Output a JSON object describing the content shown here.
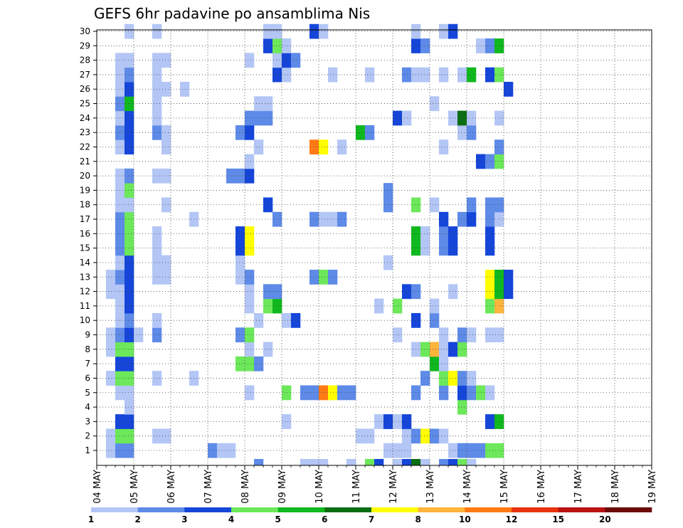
{
  "chart_data": {
    "type": "heatmap",
    "title": "GEFS 6hr padavine po ansamblima Nis",
    "x_ticks": [
      "04 MAY",
      "05 MAY",
      "06 MAY",
      "07 MAY",
      "08 MAY",
      "09 MAY",
      "10 MAY",
      "11 MAY",
      "12 MAY",
      "13 MAY",
      "14 MAY",
      "15 MAY",
      "16 MAY",
      "17 MAY",
      "18 MAY",
      "19 MAY"
    ],
    "y_ticks": [
      "1",
      "2",
      "3",
      "4",
      "5",
      "6",
      "7",
      "8",
      "9",
      "10",
      "11",
      "12",
      "13",
      "14",
      "15",
      "16",
      "17",
      "18",
      "19",
      "20",
      "21",
      "22",
      "23",
      "24",
      "25",
      "26",
      "27",
      "28",
      "29",
      "30"
    ],
    "x_steps_per_day": 4,
    "members": 30,
    "grid": true,
    "colorbar": {
      "labels": [
        "1",
        "2",
        "3",
        "4",
        "5",
        "6",
        "7",
        "8",
        "10",
        "12",
        "15",
        "20"
      ],
      "colors": [
        "#b3c6f5",
        "#5e8ae8",
        "#1546d9",
        "#6ce85a",
        "#0fb81e",
        "#0b6e13",
        "#ffff00",
        "#ffb43c",
        "#ff7a14",
        "#e8320c",
        "#b81212",
        "#6e0a0a"
      ]
    },
    "cells": [
      [
        1,
        1,
        1
      ],
      [
        1,
        2,
        2
      ],
      [
        1,
        3,
        2
      ],
      [
        1,
        12,
        2
      ],
      [
        1,
        13,
        1
      ],
      [
        1,
        14,
        1
      ],
      [
        1,
        31,
        1
      ],
      [
        1,
        32,
        1
      ],
      [
        1,
        33,
        1
      ],
      [
        1,
        38,
        1
      ],
      [
        1,
        39,
        2
      ],
      [
        1,
        40,
        2
      ],
      [
        1,
        41,
        2
      ],
      [
        1,
        42,
        4
      ],
      [
        1,
        43,
        4
      ],
      [
        2,
        1,
        1
      ],
      [
        2,
        2,
        4
      ],
      [
        2,
        3,
        4
      ],
      [
        2,
        6,
        1
      ],
      [
        2,
        7,
        1
      ],
      [
        2,
        28,
        1
      ],
      [
        2,
        29,
        1
      ],
      [
        2,
        33,
        1
      ],
      [
        2,
        34,
        2
      ],
      [
        2,
        35,
        7
      ],
      [
        2,
        36,
        2
      ],
      [
        2,
        37,
        1
      ],
      [
        3,
        2,
        3
      ],
      [
        3,
        3,
        3
      ],
      [
        3,
        20,
        1
      ],
      [
        3,
        30,
        1
      ],
      [
        3,
        31,
        3
      ],
      [
        3,
        32,
        1
      ],
      [
        3,
        33,
        3
      ],
      [
        3,
        42,
        3
      ],
      [
        3,
        43,
        5
      ],
      [
        4,
        3,
        1
      ],
      [
        4,
        39,
        4
      ],
      [
        5,
        2,
        1
      ],
      [
        5,
        3,
        1
      ],
      [
        5,
        16,
        1
      ],
      [
        5,
        20,
        4
      ],
      [
        5,
        22,
        2
      ],
      [
        5,
        23,
        2
      ],
      [
        5,
        24,
        9
      ],
      [
        5,
        25,
        7
      ],
      [
        5,
        26,
        2
      ],
      [
        5,
        27,
        2
      ],
      [
        5,
        34,
        2
      ],
      [
        5,
        37,
        2
      ],
      [
        5,
        39,
        3
      ],
      [
        5,
        40,
        2
      ],
      [
        5,
        41,
        4
      ],
      [
        5,
        42,
        1
      ],
      [
        6,
        1,
        1
      ],
      [
        6,
        2,
        4
      ],
      [
        6,
        3,
        4
      ],
      [
        6,
        6,
        1
      ],
      [
        6,
        10,
        1
      ],
      [
        6,
        35,
        2
      ],
      [
        6,
        37,
        4
      ],
      [
        6,
        38,
        7
      ],
      [
        6,
        39,
        2
      ],
      [
        6,
        40,
        1
      ],
      [
        7,
        2,
        3
      ],
      [
        7,
        3,
        3
      ],
      [
        7,
        15,
        4
      ],
      [
        7,
        16,
        4
      ],
      [
        7,
        17,
        2
      ],
      [
        7,
        36,
        5
      ],
      [
        7,
        37,
        1
      ],
      [
        8,
        1,
        1
      ],
      [
        8,
        2,
        4
      ],
      [
        8,
        3,
        4
      ],
      [
        8,
        16,
        1
      ],
      [
        8,
        18,
        1
      ],
      [
        8,
        34,
        1
      ],
      [
        8,
        35,
        4
      ],
      [
        8,
        36,
        8
      ],
      [
        8,
        37,
        1
      ],
      [
        8,
        38,
        3
      ],
      [
        8,
        39,
        4
      ],
      [
        9,
        1,
        1
      ],
      [
        9,
        2,
        2
      ],
      [
        9,
        3,
        3
      ],
      [
        9,
        4,
        1
      ],
      [
        9,
        6,
        2
      ],
      [
        9,
        15,
        2
      ],
      [
        9,
        16,
        4
      ],
      [
        9,
        32,
        1
      ],
      [
        9,
        37,
        1
      ],
      [
        9,
        39,
        2
      ],
      [
        9,
        40,
        1
      ],
      [
        9,
        42,
        1
      ],
      [
        9,
        43,
        1
      ],
      [
        10,
        2,
        1
      ],
      [
        10,
        3,
        2
      ],
      [
        10,
        6,
        1
      ],
      [
        10,
        17,
        1
      ],
      [
        10,
        20,
        1
      ],
      [
        10,
        21,
        3
      ],
      [
        10,
        34,
        3
      ],
      [
        10,
        36,
        2
      ],
      [
        11,
        2,
        1
      ],
      [
        11,
        3,
        3
      ],
      [
        11,
        16,
        1
      ],
      [
        11,
        18,
        4
      ],
      [
        11,
        19,
        5
      ],
      [
        11,
        30,
        1
      ],
      [
        11,
        32,
        4
      ],
      [
        11,
        36,
        1
      ],
      [
        11,
        42,
        4
      ],
      [
        11,
        43,
        8
      ],
      [
        12,
        1,
        1
      ],
      [
        12,
        2,
        1
      ],
      [
        12,
        3,
        3
      ],
      [
        12,
        16,
        1
      ],
      [
        12,
        18,
        2
      ],
      [
        12,
        19,
        2
      ],
      [
        12,
        33,
        3
      ],
      [
        12,
        34,
        2
      ],
      [
        12,
        38,
        1
      ],
      [
        12,
        42,
        7
      ],
      [
        12,
        43,
        5
      ],
      [
        12,
        44,
        3
      ],
      [
        13,
        1,
        1
      ],
      [
        13,
        2,
        2
      ],
      [
        13,
        3,
        3
      ],
      [
        13,
        6,
        1
      ],
      [
        13,
        7,
        1
      ],
      [
        13,
        15,
        1
      ],
      [
        13,
        16,
        2
      ],
      [
        13,
        23,
        2
      ],
      [
        13,
        24,
        4
      ],
      [
        13,
        25,
        2
      ],
      [
        13,
        42,
        7
      ],
      [
        13,
        43,
        5
      ],
      [
        13,
        44,
        3
      ],
      [
        14,
        2,
        1
      ],
      [
        14,
        3,
        3
      ],
      [
        14,
        6,
        1
      ],
      [
        14,
        7,
        1
      ],
      [
        14,
        15,
        1
      ],
      [
        14,
        31,
        1
      ],
      [
        15,
        2,
        2
      ],
      [
        15,
        3,
        4
      ],
      [
        15,
        6,
        1
      ],
      [
        15,
        15,
        3
      ],
      [
        15,
        16,
        7
      ],
      [
        15,
        34,
        5
      ],
      [
        15,
        35,
        1
      ],
      [
        15,
        37,
        2
      ],
      [
        15,
        38,
        3
      ],
      [
        15,
        42,
        3
      ],
      [
        16,
        2,
        2
      ],
      [
        16,
        3,
        4
      ],
      [
        16,
        6,
        1
      ],
      [
        16,
        15,
        3
      ],
      [
        16,
        16,
        7
      ],
      [
        16,
        34,
        5
      ],
      [
        16,
        35,
        1
      ],
      [
        16,
        37,
        2
      ],
      [
        16,
        38,
        3
      ],
      [
        16,
        42,
        3
      ],
      [
        17,
        2,
        2
      ],
      [
        17,
        3,
        4
      ],
      [
        17,
        10,
        1
      ],
      [
        17,
        19,
        2
      ],
      [
        17,
        23,
        2
      ],
      [
        17,
        24,
        1
      ],
      [
        17,
        25,
        1
      ],
      [
        17,
        26,
        2
      ],
      [
        17,
        37,
        3
      ],
      [
        17,
        39,
        2
      ],
      [
        17,
        40,
        3
      ],
      [
        17,
        42,
        2
      ],
      [
        17,
        43,
        1
      ],
      [
        18,
        2,
        1
      ],
      [
        18,
        3,
        1
      ],
      [
        18,
        7,
        1
      ],
      [
        18,
        18,
        3
      ],
      [
        18,
        31,
        2
      ],
      [
        18,
        34,
        4
      ],
      [
        18,
        36,
        1
      ],
      [
        18,
        40,
        2
      ],
      [
        18,
        42,
        2
      ],
      [
        18,
        43,
        2
      ],
      [
        19,
        2,
        1
      ],
      [
        19,
        3,
        4
      ],
      [
        19,
        31,
        2
      ],
      [
        20,
        2,
        1
      ],
      [
        20,
        3,
        2
      ],
      [
        20,
        6,
        1
      ],
      [
        20,
        7,
        1
      ],
      [
        20,
        14,
        2
      ],
      [
        20,
        15,
        2
      ],
      [
        20,
        16,
        3
      ],
      [
        21,
        16,
        1
      ],
      [
        21,
        41,
        3
      ],
      [
        21,
        42,
        2
      ],
      [
        21,
        43,
        4
      ],
      [
        22,
        2,
        1
      ],
      [
        22,
        3,
        3
      ],
      [
        22,
        7,
        1
      ],
      [
        22,
        17,
        1
      ],
      [
        22,
        23,
        9
      ],
      [
        22,
        24,
        7
      ],
      [
        22,
        26,
        1
      ],
      [
        22,
        37,
        1
      ],
      [
        22,
        43,
        2
      ],
      [
        23,
        2,
        2
      ],
      [
        23,
        3,
        3
      ],
      [
        23,
        6,
        2
      ],
      [
        23,
        7,
        1
      ],
      [
        23,
        15,
        2
      ],
      [
        23,
        16,
        3
      ],
      [
        23,
        28,
        5
      ],
      [
        23,
        29,
        2
      ],
      [
        23,
        39,
        1
      ],
      [
        23,
        40,
        2
      ],
      [
        24,
        2,
        1
      ],
      [
        24,
        3,
        3
      ],
      [
        24,
        6,
        1
      ],
      [
        24,
        16,
        2
      ],
      [
        24,
        17,
        2
      ],
      [
        24,
        18,
        2
      ],
      [
        24,
        32,
        3
      ],
      [
        24,
        33,
        1
      ],
      [
        24,
        38,
        1
      ],
      [
        24,
        39,
        6
      ],
      [
        24,
        40,
        1
      ],
      [
        24,
        43,
        1
      ],
      [
        25,
        2,
        2
      ],
      [
        25,
        3,
        5
      ],
      [
        25,
        6,
        1
      ],
      [
        25,
        17,
        1
      ],
      [
        25,
        18,
        1
      ],
      [
        25,
        36,
        1
      ],
      [
        26,
        2,
        1
      ],
      [
        26,
        3,
        3
      ],
      [
        26,
        6,
        1
      ],
      [
        26,
        7,
        1
      ],
      [
        26,
        9,
        1
      ],
      [
        26,
        44,
        3
      ],
      [
        27,
        2,
        1
      ],
      [
        27,
        3,
        2
      ],
      [
        27,
        6,
        1
      ],
      [
        27,
        19,
        3
      ],
      [
        27,
        20,
        1
      ],
      [
        27,
        25,
        1
      ],
      [
        27,
        29,
        1
      ],
      [
        27,
        33,
        2
      ],
      [
        27,
        34,
        1
      ],
      [
        27,
        35,
        1
      ],
      [
        27,
        37,
        1
      ],
      [
        27,
        39,
        1
      ],
      [
        27,
        40,
        5
      ],
      [
        27,
        42,
        3
      ],
      [
        27,
        43,
        4
      ],
      [
        28,
        2,
        1
      ],
      [
        28,
        3,
        1
      ],
      [
        28,
        6,
        1
      ],
      [
        28,
        7,
        1
      ],
      [
        28,
        16,
        1
      ],
      [
        28,
        19,
        1
      ],
      [
        28,
        20,
        3
      ],
      [
        28,
        21,
        2
      ],
      [
        29,
        18,
        3
      ],
      [
        29,
        19,
        4
      ],
      [
        29,
        20,
        1
      ],
      [
        29,
        34,
        3
      ],
      [
        29,
        35,
        2
      ],
      [
        29,
        41,
        1
      ],
      [
        29,
        42,
        2
      ],
      [
        29,
        43,
        5
      ],
      [
        30,
        3,
        1
      ],
      [
        30,
        6,
        1
      ],
      [
        30,
        18,
        1
      ],
      [
        30,
        19,
        1
      ],
      [
        30,
        23,
        3
      ],
      [
        30,
        24,
        1
      ],
      [
        30,
        34,
        1
      ],
      [
        30,
        37,
        1
      ],
      [
        30,
        38,
        3
      ]
    ],
    "bottom_row": [
      [
        17,
        2
      ],
      [
        22,
        1
      ],
      [
        23,
        1
      ],
      [
        24,
        1
      ],
      [
        27,
        1
      ],
      [
        29,
        4
      ],
      [
        30,
        3
      ],
      [
        32,
        1
      ],
      [
        33,
        3
      ],
      [
        34,
        6
      ],
      [
        35,
        1
      ],
      [
        37,
        2
      ],
      [
        38,
        3
      ],
      [
        39,
        4
      ],
      [
        40,
        1
      ]
    ]
  }
}
